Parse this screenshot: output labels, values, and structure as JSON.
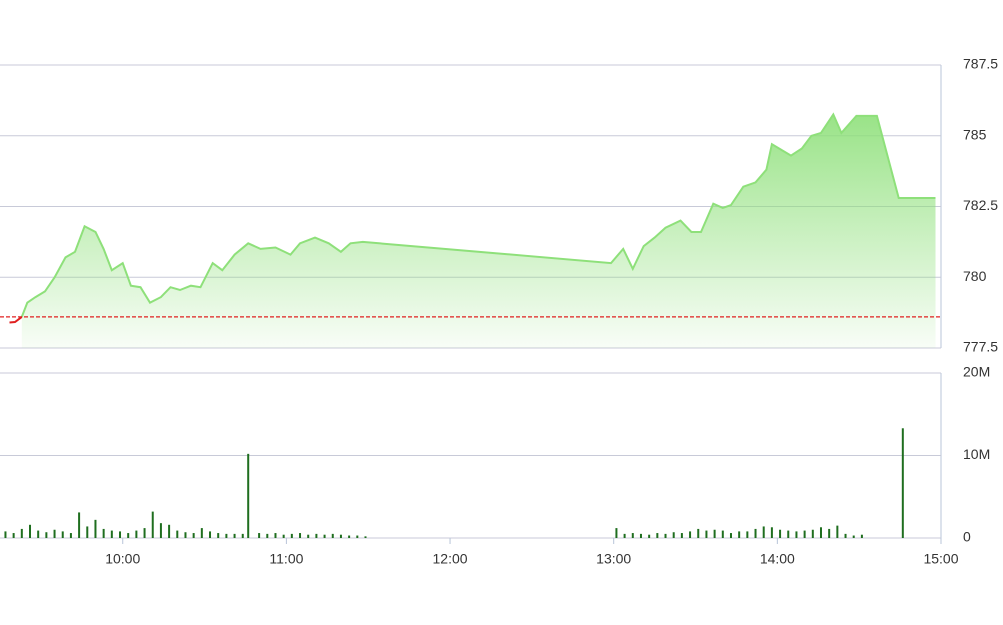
{
  "chart_data": [
    {
      "type": "area",
      "xlim": [
        555,
        900
      ],
      "ylim": [
        777.5,
        787.5
      ],
      "yticks": [
        777.5,
        780,
        782.5,
        785,
        787.5
      ],
      "grid": true,
      "reference_line": {
        "value": 778.6,
        "color": "#e02020",
        "style": "dashed"
      },
      "series": [
        {
          "color": "#8ee07a",
          "fill": true,
          "x": [
            563,
            565,
            568,
            571.5,
            575,
            579,
            582.5,
            586,
            590,
            593,
            596,
            600,
            603,
            606.5,
            610,
            614,
            617.5,
            621,
            625,
            628.5,
            633,
            636.5,
            641,
            646,
            650.5,
            656,
            661.5,
            665,
            670.5,
            675.5,
            680,
            683.5,
            688,
            779,
            783.5,
            787,
            791,
            795,
            799,
            804.5,
            808.5,
            812,
            816.5,
            820,
            823,
            827.5,
            832,
            836,
            838,
            841.5,
            845,
            849,
            852.5,
            856,
            860.5,
            863.5,
            869,
            876.5,
            884.5,
            898
          ],
          "values": [
            778.6,
            779.1,
            779.3,
            779.5,
            780.0,
            780.7,
            780.9,
            781.8,
            781.6,
            781.0,
            780.25,
            780.5,
            779.7,
            779.65,
            779.1,
            779.3,
            779.65,
            779.55,
            779.7,
            779.65,
            780.5,
            780.25,
            780.8,
            781.2,
            781.0,
            781.05,
            780.8,
            781.2,
            781.4,
            781.2,
            780.9,
            781.2,
            781.25,
            780.5,
            781.0,
            780.3,
            781.1,
            781.4,
            781.75,
            782.0,
            781.6,
            781.6,
            782.6,
            782.45,
            782.55,
            783.2,
            783.35,
            783.8,
            784.7,
            784.5,
            784.3,
            784.55,
            785.0,
            785.1,
            785.75,
            785.1,
            785.7,
            785.7,
            782.8,
            782.8
          ]
        },
        {
          "color": "#e02020",
          "fill": false,
          "x": [
            558.5,
            560.5,
            563
          ],
          "values": [
            778.4,
            778.42,
            778.6
          ]
        }
      ]
    },
    {
      "type": "bar",
      "xlim": [
        555,
        900
      ],
      "ylim": [
        0,
        20000000
      ],
      "yticks": [
        0,
        {
          "value": 10000000,
          "label": "10M"
        },
        {
          "value": 20000000,
          "label": "20M"
        }
      ],
      "xticks": [
        {
          "value": 600,
          "label": "10:00"
        },
        {
          "value": 660,
          "label": "11:00"
        },
        {
          "value": 720,
          "label": "12:00"
        },
        {
          "value": 780,
          "label": "13:00"
        },
        {
          "value": 840,
          "label": "14:00"
        },
        {
          "value": 900,
          "label": "15:00"
        }
      ],
      "grid": true,
      "color": "#1f6e1f",
      "x": [
        557,
        560,
        563,
        566,
        569,
        572,
        575,
        578,
        581,
        584,
        587,
        590,
        593,
        596,
        599,
        602,
        605,
        608,
        611,
        614,
        617,
        620,
        623,
        626,
        629,
        632,
        635,
        638,
        641,
        644,
        646,
        650,
        653,
        656,
        659,
        662,
        665,
        668,
        671,
        674,
        677,
        680,
        683,
        686,
        689,
        781,
        784,
        787,
        790,
        793,
        796,
        799,
        802,
        805,
        808,
        811,
        814,
        817,
        820,
        823,
        826,
        829,
        832,
        835,
        838,
        841,
        844,
        847,
        850,
        853,
        856,
        859,
        862,
        865,
        868,
        871,
        886
      ],
      "values": [
        800000,
        600000,
        1100000,
        1600000,
        900000,
        700000,
        1000000,
        800000,
        600000,
        3100000,
        1400000,
        2200000,
        1100000,
        900000,
        800000,
        600000,
        900000,
        1200000,
        3200000,
        1800000,
        1600000,
        900000,
        700000,
        600000,
        1200000,
        800000,
        600000,
        500000,
        500000,
        500000,
        10200000,
        600000,
        500000,
        600000,
        400000,
        500000,
        600000,
        400000,
        500000,
        400000,
        500000,
        400000,
        300000,
        300000,
        200000,
        1200000,
        500000,
        600000,
        500000,
        400000,
        600000,
        500000,
        700000,
        600000,
        800000,
        1100000,
        900000,
        1000000,
        900000,
        600000,
        800000,
        800000,
        1100000,
        1400000,
        1300000,
        1000000,
        900000,
        800000,
        900000,
        1000000,
        1300000,
        1100000,
        1500000,
        500000,
        300000,
        400000,
        13300000
      ]
    }
  ]
}
